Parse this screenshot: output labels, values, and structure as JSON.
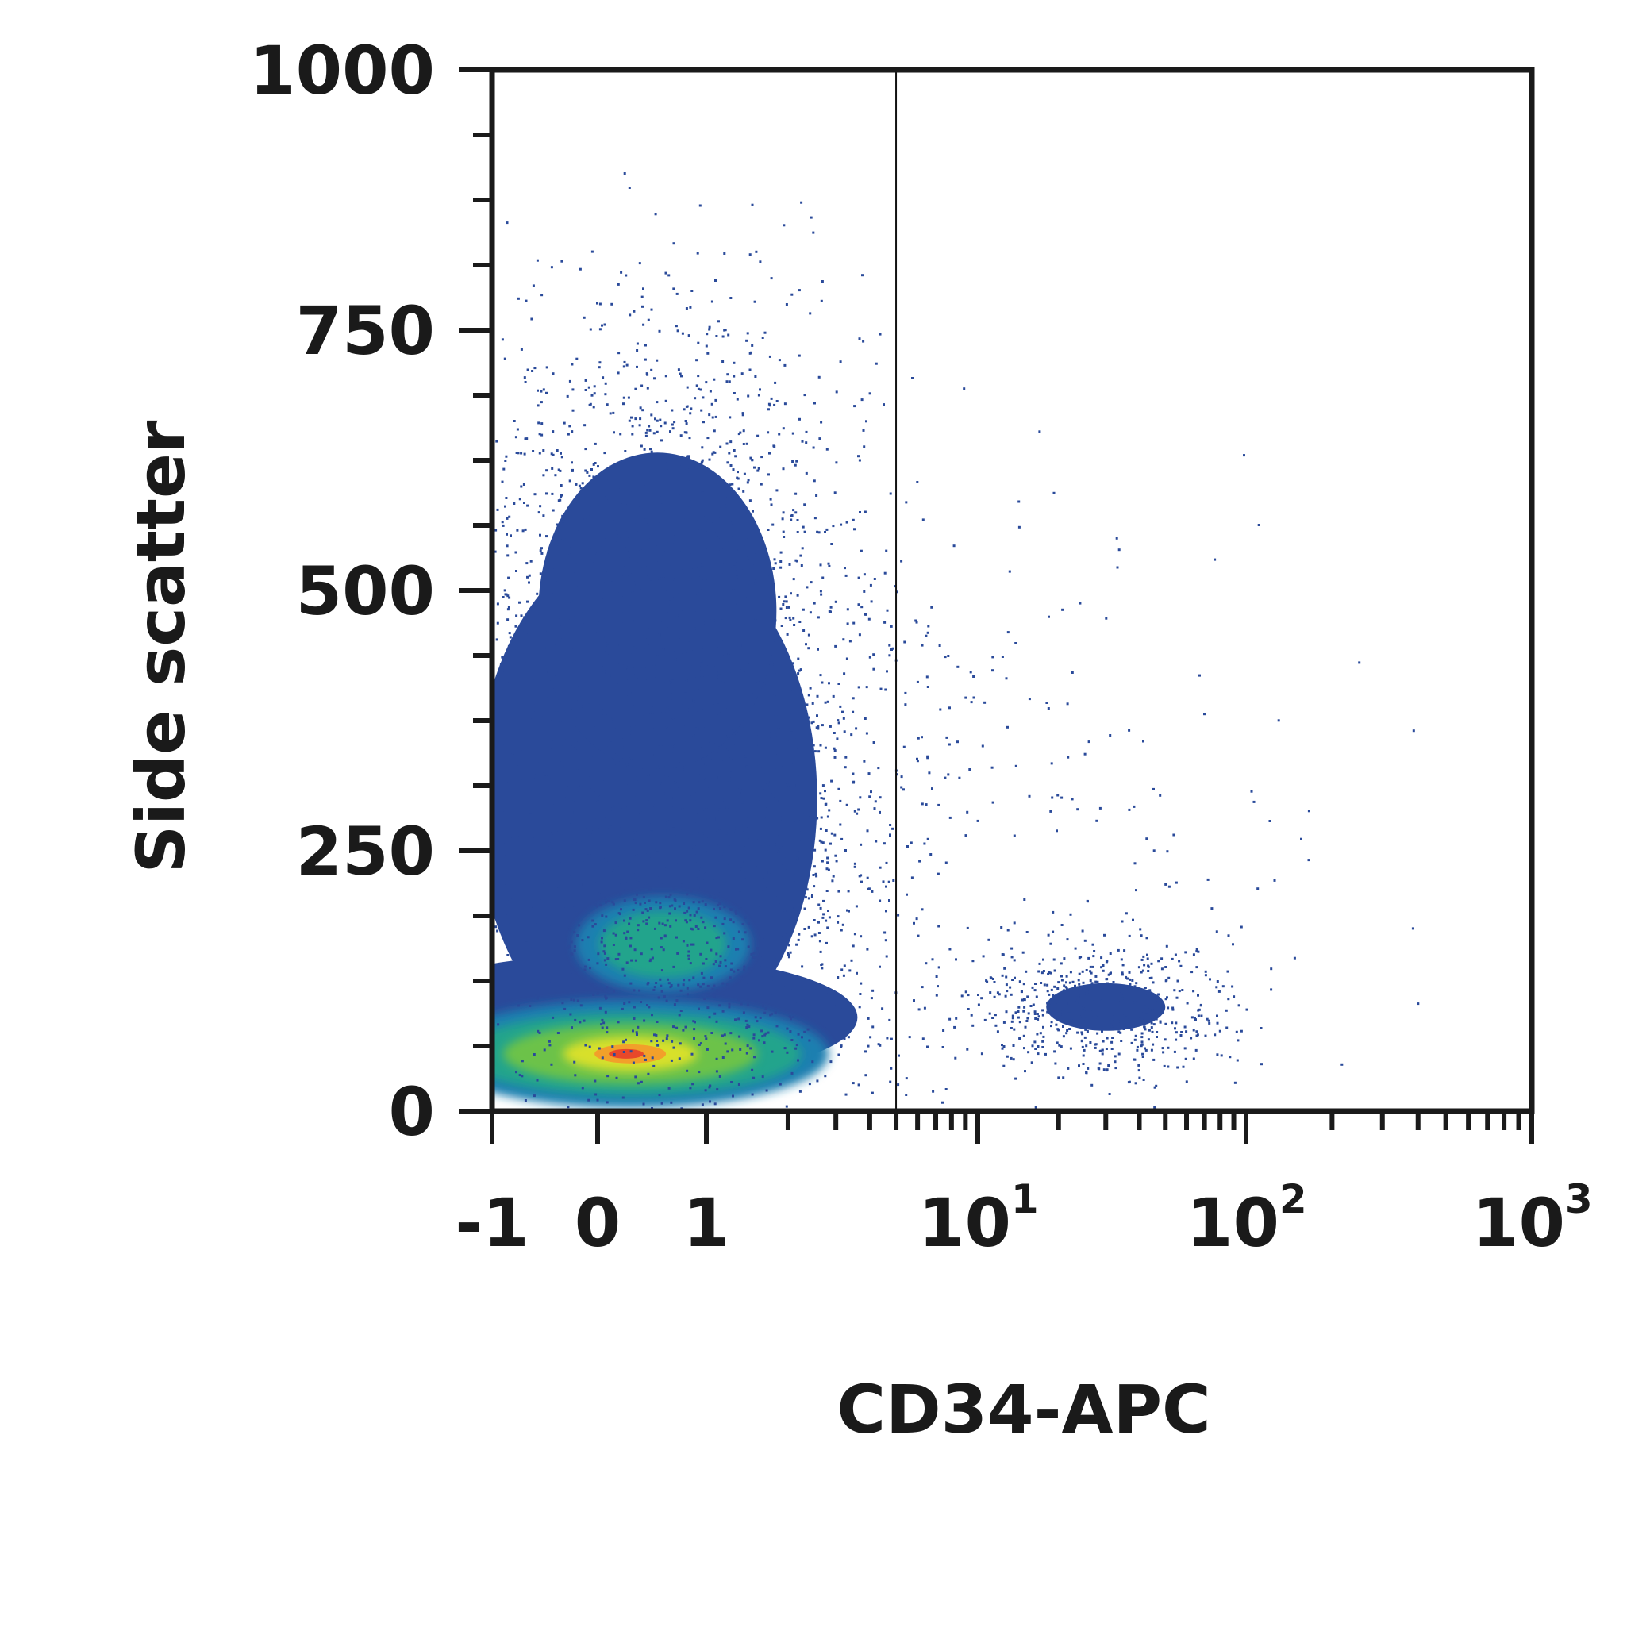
{
  "chart_data": {
    "type": "scatter",
    "xlabel": "CD34-APC",
    "ylabel": "Side scatter",
    "xscale": "biexponential",
    "yscale": "linear",
    "xlim": [
      -1,
      1000
    ],
    "ylim": [
      0,
      1000
    ],
    "x_ticks": [
      {
        "value": -1,
        "base": "-1",
        "exp": ""
      },
      {
        "value": 0,
        "base": "0",
        "exp": ""
      },
      {
        "value": 1,
        "base": "1",
        "exp": ""
      },
      {
        "value": 10,
        "base": "10",
        "exp": "1"
      },
      {
        "value": 100,
        "base": "10",
        "exp": "2"
      },
      {
        "value": 1000,
        "base": "10",
        "exp": "3"
      }
    ],
    "y_ticks": [
      {
        "value": 0,
        "label": "0"
      },
      {
        "value": 250,
        "label": "250"
      },
      {
        "value": 500,
        "label": "500"
      },
      {
        "value": 750,
        "label": "750"
      },
      {
        "value": 1000,
        "label": "1000"
      }
    ],
    "gate_x": 5,
    "colormap": [
      "#2a4a9a",
      "#1f7fb0",
      "#22a48c",
      "#6cc24a",
      "#d8e02a",
      "#f2a02a",
      "#e8482a"
    ],
    "populations": [
      {
        "center_x": 0.3,
        "center_y": 55,
        "density": "highest",
        "region": "CD34-negative"
      },
      {
        "center_x": 0.6,
        "center_y": 160,
        "density": "high",
        "region": "CD34-negative"
      },
      {
        "center_x": 0.5,
        "center_y": 300,
        "density": "medium",
        "region": "CD34-negative"
      },
      {
        "center_x": 30,
        "center_y": 100,
        "density": "low",
        "region": "CD34-positive"
      }
    ],
    "grid": false,
    "legend": "none"
  }
}
